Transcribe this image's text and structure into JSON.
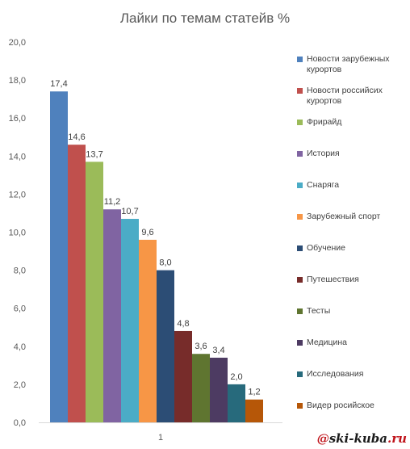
{
  "chart_data": {
    "type": "bar",
    "title": "Лайки по темам статейв %",
    "categories": [
      "1"
    ],
    "ylim": [
      0,
      20
    ],
    "yticks": [
      "0,0",
      "2,0",
      "4,0",
      "6,0",
      "8,0",
      "10,0",
      "12,0",
      "14,0",
      "16,0",
      "18,0",
      "20,0"
    ],
    "grid": false,
    "legend_position": "right",
    "series": [
      {
        "name": "Новости зарубежных курортов",
        "value": 17.4,
        "label": "17,4",
        "color": "#4f81bd"
      },
      {
        "name": "Новости российсих курортов",
        "value": 14.6,
        "label": "14,6",
        "color": "#c0504d"
      },
      {
        "name": "Фрирайд",
        "value": 13.7,
        "label": "13,7",
        "color": "#9bbb59"
      },
      {
        "name": "История",
        "value": 11.2,
        "label": "11,2",
        "color": "#8064a2"
      },
      {
        "name": "Снаряга",
        "value": 10.7,
        "label": "10,7",
        "color": "#4bacc6"
      },
      {
        "name": "Зарубежный спорт",
        "value": 9.6,
        "label": "9,6",
        "color": "#f79646"
      },
      {
        "name": "Обучение",
        "value": 8.0,
        "label": "8,0",
        "color": "#2c4d75"
      },
      {
        "name": "Путешествия",
        "value": 4.8,
        "label": "4,8",
        "color": "#772c2a"
      },
      {
        "name": "Тесты",
        "value": 3.6,
        "label": "3,6",
        "color": "#5f7530"
      },
      {
        "name": "Медицина",
        "value": 3.4,
        "label": "3,4",
        "color": "#4d3b62"
      },
      {
        "name": "Исследования",
        "value": 2.0,
        "label": "2,0",
        "color": "#276a7c"
      },
      {
        "name": "Видер росийское",
        "value": 1.2,
        "label": "1,2",
        "color": "#b65708"
      }
    ]
  },
  "watermark": {
    "prefix": "@",
    "brand": "ski-kuba",
    "suffix": ".ru"
  }
}
